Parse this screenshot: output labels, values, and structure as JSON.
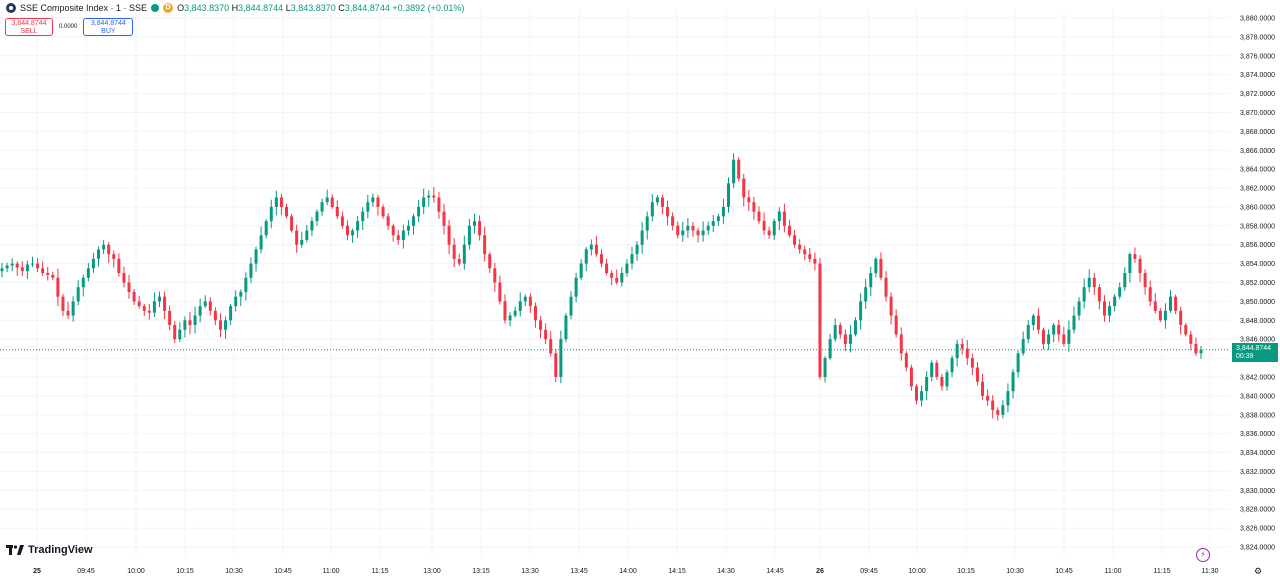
{
  "legend": {
    "title": "SSE Composite Index · 1 · SSE",
    "badge": "D",
    "o_label": "O",
    "o_value": "3,843.8370",
    "h_label": "H",
    "h_value": "3,844.8744",
    "l_label": "L",
    "l_value": "3,843.8370",
    "c_label": "C",
    "c_value": "3,844.8744",
    "change": "+0.3892 (+0.01%)"
  },
  "trade": {
    "sell_price": "3,844.8744",
    "sell_label": "SELL",
    "spread": "0.0000",
    "buy_price": "3,844.8744",
    "buy_label": "BUY"
  },
  "price_tag": {
    "price": "3,844.8744",
    "countdown": "00:39"
  },
  "brand": {
    "name": "TradingView"
  },
  "colors": {
    "up": "#089981",
    "down": "#f23645",
    "grid": "#f0f3fa",
    "text": "#131722"
  },
  "icons": [
    "lightning-icon",
    "gear-icon",
    "tradingview-logo"
  ],
  "chart_data": {
    "type": "candlestick",
    "ylim": [
      3822.5,
      3881.0
    ],
    "y_ticks": [
      "3,880.0000",
      "3,878.0000",
      "3,876.0000",
      "3,874.0000",
      "3,872.0000",
      "3,870.0000",
      "3,868.0000",
      "3,866.0000",
      "3,864.0000",
      "3,862.0000",
      "3,860.0000",
      "3,858.0000",
      "3,856.0000",
      "3,854.0000",
      "3,852.0000",
      "3,850.0000",
      "3,848.0000",
      "3,846.0000",
      "3,844.0000",
      "3,842.0000",
      "3,840.0000",
      "3,838.0000",
      "3,836.0000",
      "3,834.0000",
      "3,832.0000",
      "3,830.0000",
      "3,828.0000",
      "3,826.0000",
      "3,824.0000"
    ],
    "x_labels": [
      "25",
      "09:45",
      "10:00",
      "10:15",
      "10:30",
      "10:45",
      "11:00",
      "11:15",
      "13:00",
      "13:15",
      "13:30",
      "13:45",
      "14:00",
      "14:15",
      "14:30",
      "14:45",
      "26",
      "09:45",
      "10:00",
      "10:15",
      "10:30",
      "10:45",
      "11:00",
      "11:15",
      "11:30"
    ],
    "last_price": 3844.8744,
    "closes": [
      3853.5,
      3853.8,
      3854.0,
      3853.6,
      3853.2,
      3853.9,
      3854.0,
      3853.5,
      3853.0,
      3852.8,
      3852.5,
      3850.5,
      3849.0,
      3848.5,
      3850.0,
      3851.5,
      3852.5,
      3853.5,
      3854.5,
      3855.5,
      3856.0,
      3855.0,
      3854.5,
      3853.0,
      3852.0,
      3851.0,
      3850.0,
      3849.5,
      3849.0,
      3848.8,
      3850.0,
      3850.5,
      3849.0,
      3847.5,
      3846.0,
      3847.0,
      3848.0,
      3847.5,
      3848.5,
      3849.5,
      3850.0,
      3849.0,
      3848.0,
      3847.0,
      3848.0,
      3849.5,
      3850.5,
      3851.0,
      3852.5,
      3854.0,
      3855.5,
      3857.0,
      3858.5,
      3860.0,
      3861.0,
      3860.0,
      3859.0,
      3857.5,
      3856.0,
      3856.5,
      3857.5,
      3858.5,
      3859.5,
      3860.5,
      3861.0,
      3860.0,
      3859.0,
      3858.0,
      3857.0,
      3857.5,
      3858.5,
      3859.5,
      3860.5,
      3861.0,
      3860.0,
      3859.0,
      3858.0,
      3857.0,
      3856.5,
      3857.5,
      3858.0,
      3859.0,
      3860.0,
      3861.0,
      3861.2,
      3861.0,
      3859.5,
      3858.0,
      3856.0,
      3854.5,
      3854.0,
      3856.0,
      3858.0,
      3858.5,
      3857.0,
      3855.0,
      3853.5,
      3852.0,
      3850.0,
      3848.0,
      3848.5,
      3849.0,
      3850.0,
      3850.5,
      3849.5,
      3848.0,
      3847.0,
      3846.0,
      3844.5,
      3842.0,
      3846.0,
      3848.5,
      3850.5,
      3852.5,
      3854.0,
      3855.5,
      3856.0,
      3855.0,
      3854.0,
      3853.0,
      3852.5,
      3852.0,
      3853.0,
      3854.0,
      3855.0,
      3856.0,
      3857.5,
      3859.0,
      3860.5,
      3861.0,
      3860.0,
      3859.0,
      3858.0,
      3857.0,
      3857.5,
      3858.0,
      3857.5,
      3857.0,
      3857.5,
      3858.0,
      3858.5,
      3859.0,
      3860.0,
      3862.5,
      3865.0,
      3863.0,
      3861.0,
      3860.5,
      3859.5,
      3858.5,
      3857.5,
      3857.0,
      3858.5,
      3859.5,
      3858.0,
      3857.0,
      3856.0,
      3855.5,
      3855.0,
      3854.5,
      3854.0,
      3842.0,
      3844.0,
      3846.0,
      3847.5,
      3846.5,
      3845.5,
      3846.5,
      3848.0,
      3850.0,
      3851.5,
      3853.0,
      3854.5,
      3852.5,
      3850.5,
      3848.5,
      3846.5,
      3844.5,
      3843.0,
      3841.0,
      3839.5,
      3840.5,
      3842.0,
      3843.5,
      3842.0,
      3841.0,
      3842.5,
      3844.0,
      3845.5,
      3845.0,
      3844.0,
      3843.0,
      3841.5,
      3840.0,
      3839.5,
      3838.5,
      3838.0,
      3839.0,
      3840.5,
      3842.5,
      3844.5,
      3846.0,
      3847.5,
      3848.5,
      3847.0,
      3845.5,
      3846.5,
      3847.5,
      3846.5,
      3845.5,
      3847.0,
      3848.5,
      3850.0,
      3851.5,
      3852.5,
      3851.5,
      3850.0,
      3848.5,
      3849.5,
      3850.5,
      3851.5,
      3853.0,
      3855.0,
      3854.5,
      3853.0,
      3851.5,
      3850.0,
      3849.0,
      3848.0,
      3849.0,
      3850.5,
      3849.0,
      3847.5,
      3846.5,
      3845.5,
      3844.5,
      3844.87
    ]
  }
}
